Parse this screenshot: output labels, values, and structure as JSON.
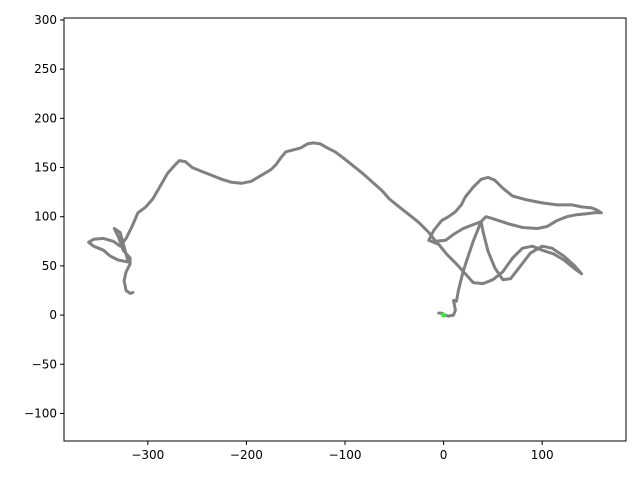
{
  "chart_data": {
    "type": "line",
    "title": "",
    "xlabel": "",
    "ylabel": "",
    "xlim": [
      -385,
      185
    ],
    "ylim": [
      -128,
      302
    ],
    "xticks": [
      -300,
      -200,
      -100,
      0,
      100
    ],
    "xtick_labels": [
      "−300",
      "−200",
      "−100",
      "0",
      "100"
    ],
    "yticks": [
      -100,
      -50,
      0,
      50,
      100,
      150,
      200,
      250,
      300
    ],
    "ytick_labels": [
      "−100",
      "−50",
      "0",
      "50",
      "100",
      "150",
      "200",
      "250",
      "300"
    ],
    "grid": false,
    "legend": "none",
    "colors": {
      "trajectory": "#808080",
      "start_marker": "#33ee33"
    },
    "series": [
      {
        "values": [
          [
            -5,
            2
          ],
          [
            -2,
            2
          ],
          [
            1,
            0
          ],
          [
            5,
            -1
          ],
          [
            10,
            0
          ],
          [
            12,
            5
          ],
          [
            10,
            15
          ],
          [
            13,
            14
          ],
          [
            15,
            25
          ],
          [
            20,
            45
          ],
          [
            25,
            60
          ],
          [
            30,
            75
          ],
          [
            38,
            95
          ],
          [
            43,
            100
          ],
          [
            50,
            98
          ],
          [
            65,
            93
          ],
          [
            80,
            89
          ],
          [
            95,
            88
          ],
          [
            105,
            90
          ],
          [
            115,
            96
          ],
          [
            125,
            100
          ],
          [
            135,
            102
          ],
          [
            145,
            103
          ],
          [
            153,
            104
          ],
          [
            160,
            104
          ],
          [
            155,
            107
          ],
          [
            150,
            109
          ],
          [
            140,
            110
          ],
          [
            130,
            112
          ],
          [
            115,
            112
          ],
          [
            100,
            114
          ],
          [
            85,
            117
          ],
          [
            70,
            121
          ],
          [
            60,
            129
          ],
          [
            52,
            137
          ],
          [
            45,
            140
          ],
          [
            38,
            138
          ],
          [
            30,
            130
          ],
          [
            22,
            120
          ],
          [
            18,
            112
          ],
          [
            12,
            105
          ],
          [
            5,
            100
          ],
          [
            -2,
            96
          ],
          [
            -10,
            86
          ],
          [
            -15,
            76
          ],
          [
            -5,
            72
          ],
          [
            3,
            62
          ],
          [
            13,
            52
          ],
          [
            22,
            42
          ],
          [
            30,
            33
          ],
          [
            40,
            32
          ],
          [
            50,
            36
          ],
          [
            60,
            44
          ],
          [
            70,
            58
          ],
          [
            80,
            68
          ],
          [
            90,
            70
          ],
          [
            100,
            66
          ],
          [
            112,
            62
          ],
          [
            122,
            56
          ],
          [
            132,
            48
          ],
          [
            140,
            42
          ],
          [
            133,
            50
          ],
          [
            122,
            60
          ],
          [
            110,
            68
          ],
          [
            100,
            70
          ],
          [
            88,
            63
          ],
          [
            78,
            50
          ],
          [
            68,
            37
          ],
          [
            60,
            36
          ],
          [
            52,
            48
          ],
          [
            45,
            65
          ],
          [
            40,
            85
          ],
          [
            38,
            95
          ],
          [
            30,
            92
          ],
          [
            20,
            88
          ],
          [
            10,
            82
          ],
          [
            2,
            76
          ],
          [
            -8,
            75
          ],
          [
            -15,
            84
          ],
          [
            -25,
            94
          ],
          [
            -35,
            102
          ],
          [
            -45,
            110
          ],
          [
            -55,
            118
          ],
          [
            -62,
            126
          ],
          [
            -72,
            135
          ],
          [
            -82,
            144
          ],
          [
            -92,
            152
          ],
          [
            -102,
            160
          ],
          [
            -110,
            166
          ],
          [
            -118,
            170
          ],
          [
            -125,
            174
          ],
          [
            -132,
            175
          ],
          [
            -138,
            174
          ],
          [
            -145,
            170
          ],
          [
            -152,
            168
          ],
          [
            -160,
            166
          ],
          [
            -165,
            160
          ],
          [
            -170,
            153
          ],
          [
            -175,
            148
          ],
          [
            -185,
            142
          ],
          [
            -195,
            136
          ],
          [
            -205,
            134
          ],
          [
            -215,
            135
          ],
          [
            -225,
            138
          ],
          [
            -235,
            142
          ],
          [
            -245,
            146
          ],
          [
            -255,
            150
          ],
          [
            -262,
            156
          ],
          [
            -268,
            157
          ],
          [
            -273,
            152
          ],
          [
            -280,
            144
          ],
          [
            -288,
            130
          ],
          [
            -295,
            118
          ],
          [
            -302,
            110
          ],
          [
            -310,
            104
          ],
          [
            -316,
            90
          ],
          [
            -322,
            78
          ],
          [
            -328,
            70
          ],
          [
            -335,
            75
          ],
          [
            -345,
            78
          ],
          [
            -355,
            77
          ],
          [
            -360,
            74
          ],
          [
            -355,
            70
          ],
          [
            -345,
            66
          ],
          [
            -338,
            60
          ],
          [
            -330,
            56
          ],
          [
            -320,
            54
          ],
          [
            -322,
            62
          ],
          [
            -328,
            84
          ],
          [
            -334,
            88
          ],
          [
            -330,
            80
          ],
          [
            -325,
            66
          ],
          [
            -318,
            58
          ],
          [
            -318,
            52
          ],
          [
            -322,
            44
          ],
          [
            -324,
            35
          ],
          [
            -322,
            25
          ],
          [
            -318,
            22
          ],
          [
            -315,
            23
          ]
        ]
      }
    ],
    "start_point": [
      0,
      0
    ]
  }
}
